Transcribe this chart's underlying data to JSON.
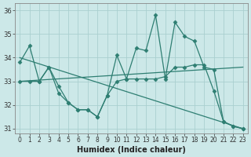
{
  "bg_color": "#cce8e8",
  "grid_color": "#aacfcf",
  "line_color": "#2e7e72",
  "xlabel": "Humidex (Indice chaleur)",
  "xlim": [
    -0.5,
    23.5
  ],
  "ylim": [
    30.8,
    36.3
  ],
  "yticks": [
    31,
    32,
    33,
    34,
    35,
    36
  ],
  "xticks": [
    0,
    1,
    2,
    3,
    4,
    5,
    6,
    7,
    8,
    9,
    10,
    11,
    12,
    13,
    14,
    15,
    16,
    17,
    18,
    19,
    20,
    21,
    22,
    23
  ],
  "series": [
    {
      "x": [
        0,
        1,
        2,
        3,
        4,
        5,
        6,
        7,
        8,
        9,
        10,
        11,
        12,
        13,
        14,
        15,
        16,
        17,
        18,
        19,
        20,
        21,
        22,
        23
      ],
      "y": [
        33.8,
        34.5,
        33.0,
        33.6,
        32.8,
        32.1,
        31.8,
        31.8,
        31.5,
        32.4,
        34.1,
        33.1,
        34.4,
        34.3,
        35.8,
        33.1,
        35.5,
        34.9,
        34.7,
        33.6,
        33.5,
        31.3,
        31.1,
        31.0
      ],
      "marker": "D",
      "markersize": 2.5,
      "linewidth": 0.9,
      "linestyle": "-"
    },
    {
      "x": [
        0,
        23
      ],
      "y": [
        33.0,
        33.6
      ],
      "marker": null,
      "markersize": 0,
      "linewidth": 0.9,
      "linestyle": "-"
    },
    {
      "x": [
        0,
        23
      ],
      "y": [
        34.0,
        31.0
      ],
      "marker": null,
      "markersize": 0,
      "linewidth": 0.9,
      "linestyle": "-"
    },
    {
      "x": [
        0,
        1,
        2,
        3,
        4,
        5,
        6,
        7,
        8,
        9,
        10,
        11,
        12,
        13,
        14,
        15,
        16,
        17,
        18,
        19,
        20,
        21,
        22,
        23
      ],
      "y": [
        33.0,
        33.0,
        33.0,
        33.6,
        32.5,
        32.1,
        31.8,
        31.8,
        31.5,
        32.4,
        33.0,
        33.1,
        33.1,
        33.1,
        33.1,
        33.2,
        33.6,
        33.6,
        33.7,
        33.7,
        32.6,
        31.3,
        31.1,
        31.0
      ],
      "marker": "D",
      "markersize": 2.5,
      "linewidth": 0.9,
      "linestyle": "-"
    }
  ]
}
